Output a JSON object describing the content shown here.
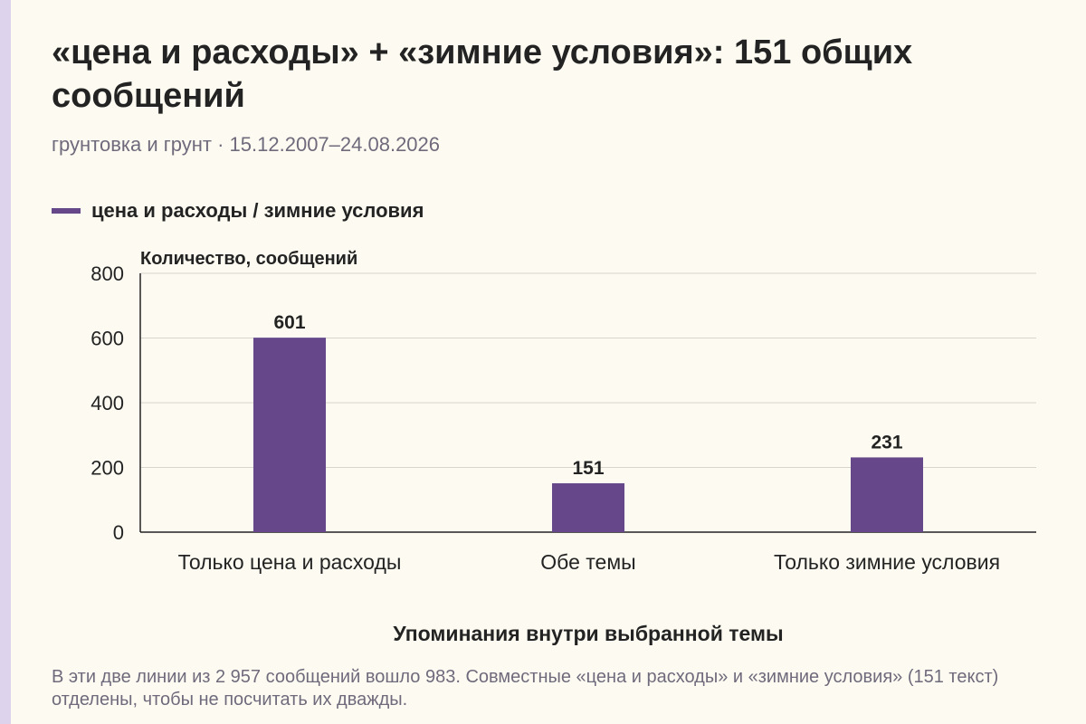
{
  "title": "«цена и расходы» + «зимние условия»: 151 общих сообщений",
  "subtitle": "грунтовка и грунт · 15.12.2007–24.08.2026",
  "legend": {
    "label": "цена и расходы / зимние условия",
    "color": "#66488a"
  },
  "footnote": "В эти две линии из 2 957 сообщений вошло 983. Совместные «цена и расходы» и «зимние условия» (151 текст) отделены, чтобы не посчитать их дважды.",
  "chart_data": {
    "type": "bar",
    "categories": [
      "Только цена и расходы",
      "Обе темы",
      "Только зимние условия"
    ],
    "series": [
      {
        "name": "цена и расходы / зимние условия",
        "values": [
          601,
          151,
          231
        ],
        "color": "#66488a"
      }
    ],
    "ylabel": "Количество, сообщений",
    "xlabel": "Упоминания внутри выбранной темы",
    "ylim": [
      0,
      800
    ],
    "yticks": [
      0,
      200,
      400,
      600,
      800
    ],
    "data_labels": true,
    "grid": true
  }
}
